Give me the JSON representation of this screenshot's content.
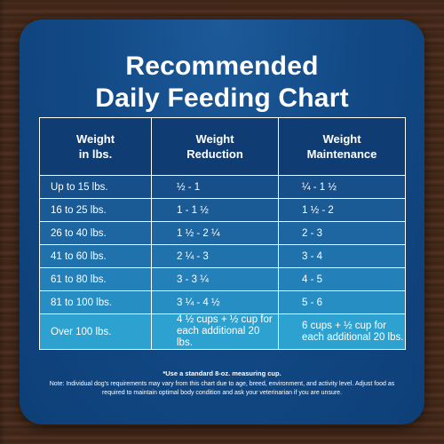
{
  "title": {
    "line1": "Recommended",
    "line2": "Daily Feeding Chart"
  },
  "table": {
    "headers": {
      "weight": "Weight\nin lbs.",
      "reduction": "Weight\nReduction",
      "maintenance": "Weight\nMaintenance"
    },
    "rows": [
      {
        "weight": "Up to 15 lbs.",
        "reduction": "½ - 1",
        "maintenance": "¼ - 1 ½"
      },
      {
        "weight": "16 to 25 lbs.",
        "reduction": "1 - 1 ½",
        "maintenance": "1 ½ - 2"
      },
      {
        "weight": "26 to 40 lbs.",
        "reduction": "1 ½ - 2 ¼",
        "maintenance": "2 - 3"
      },
      {
        "weight": "41 to 60 lbs.",
        "reduction": "2 ¼ - 3",
        "maintenance": "3 - 4"
      },
      {
        "weight": "61 to 80 lbs.",
        "reduction": "3 - 3 ¼",
        "maintenance": "4 - 5"
      },
      {
        "weight": "81 to 100 lbs.",
        "reduction": "3 ¼ - 4 ½",
        "maintenance": "5 - 6"
      },
      {
        "weight": "Over 100 lbs.",
        "reduction": "4 ½ cups + ½ cup for\neach additional 20 lbs.",
        "maintenance": "6 cups + ½ cup for\neach additional 20 lbs."
      }
    ]
  },
  "notes": {
    "measuring": "*Use a standard 8-oz. measuring cup.",
    "disclaimer": "Note: Individual dog's requirements may vary from this chart due to age, breed, environment, and activity level. Adjust food as required to maintain optimal body condition and ask your veterinarian if you are unsure."
  },
  "colors": {
    "card_background": "#124a86",
    "table_header": "#0f3d73",
    "last_row": "#2da2d1",
    "text": "#ffffff",
    "wood_background": "#3b2518"
  }
}
